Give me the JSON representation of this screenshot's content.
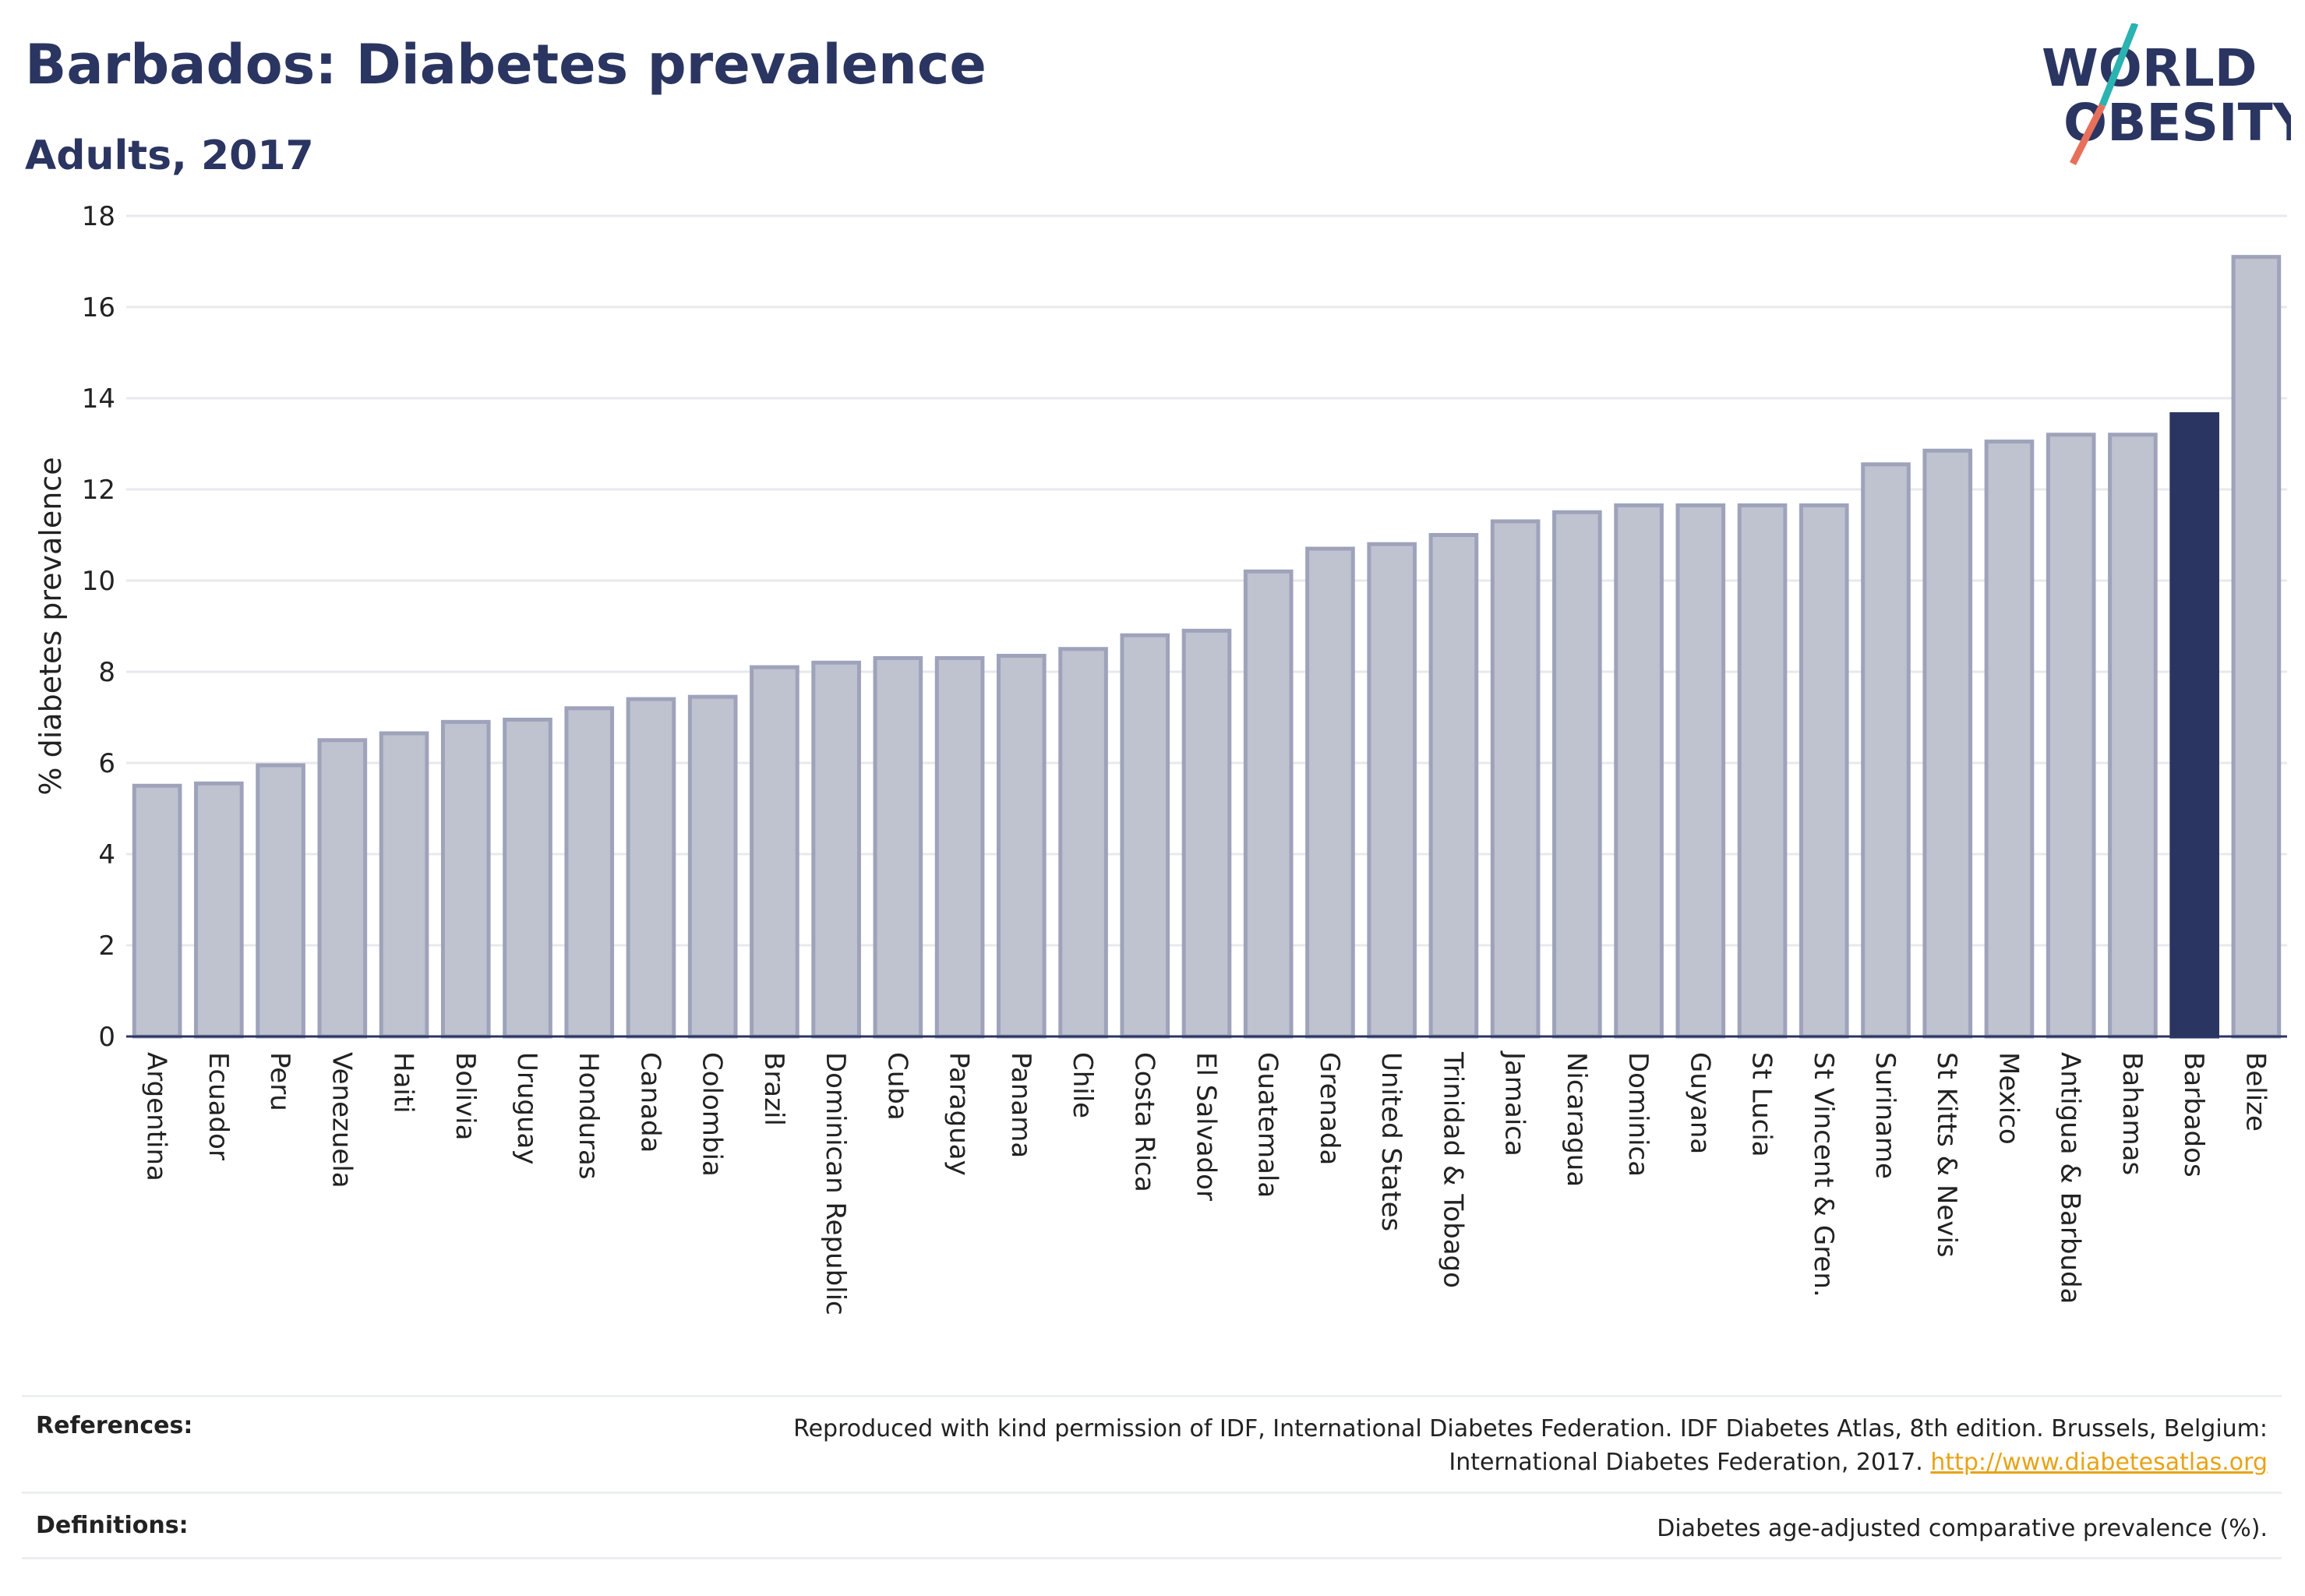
{
  "header": {
    "title": "Barbados: Diabetes prevalence",
    "subtitle": "Adults, 2017"
  },
  "logo": {
    "line1": "WORLD",
    "line2": "OBESITY",
    "name": "world-obesity-logo"
  },
  "chart_data": {
    "type": "bar",
    "ylabel": "% diabetes prevalence",
    "ylim": [
      0,
      18
    ],
    "yticks": [
      0,
      2,
      4,
      6,
      8,
      10,
      12,
      14,
      16,
      18
    ],
    "grid": true,
    "highlight": "Barbados",
    "colors": {
      "bar": "#bfc2cf",
      "bar_border": "#9ea3bb",
      "highlight": "#2b3561",
      "grid": "#e8e9ee",
      "axis": "#2b3561"
    },
    "categories": [
      "Argentina",
      "Ecuador",
      "Peru",
      "Venezuela",
      "Haiti",
      "Bolivia",
      "Uruguay",
      "Honduras",
      "Canada",
      "Colombia",
      "Brazil",
      "Dominican Republic",
      "Cuba",
      "Paraguay",
      "Panama",
      "Chile",
      "Costa Rica",
      "El Salvador",
      "Guatemala",
      "Grenada",
      "United States",
      "Trinidad & Tobago",
      "Jamaica",
      "Nicaragua",
      "Dominica",
      "Guyana",
      "St Lucia",
      "St Vincent & Gren.",
      "Suriname",
      "St Kitts & Nevis",
      "Mexico",
      "Antigua & Barbuda",
      "Bahamas",
      "Barbados",
      "Belize"
    ],
    "values": [
      5.5,
      5.55,
      5.95,
      6.5,
      6.65,
      6.9,
      6.95,
      7.2,
      7.4,
      7.45,
      8.1,
      8.2,
      8.3,
      8.3,
      8.35,
      8.5,
      8.8,
      8.9,
      10.2,
      10.7,
      10.8,
      11.0,
      11.3,
      11.5,
      11.65,
      11.65,
      11.65,
      11.65,
      12.55,
      12.85,
      13.05,
      13.2,
      13.2,
      13.65,
      17.1
    ]
  },
  "footer": {
    "references_label": "References:",
    "references_text": "Reproduced with kind permission of IDF, International Diabetes Federation. IDF Diabetes Atlas, 8th edition. Brussels, Belgium:",
    "references_text2": "International Diabetes Federation, 2017.",
    "references_link": "http://www.diabetesatlas.org",
    "definitions_label": "Definitions:",
    "definitions_text": "Diabetes age-adjusted comparative prevalence (%)."
  }
}
